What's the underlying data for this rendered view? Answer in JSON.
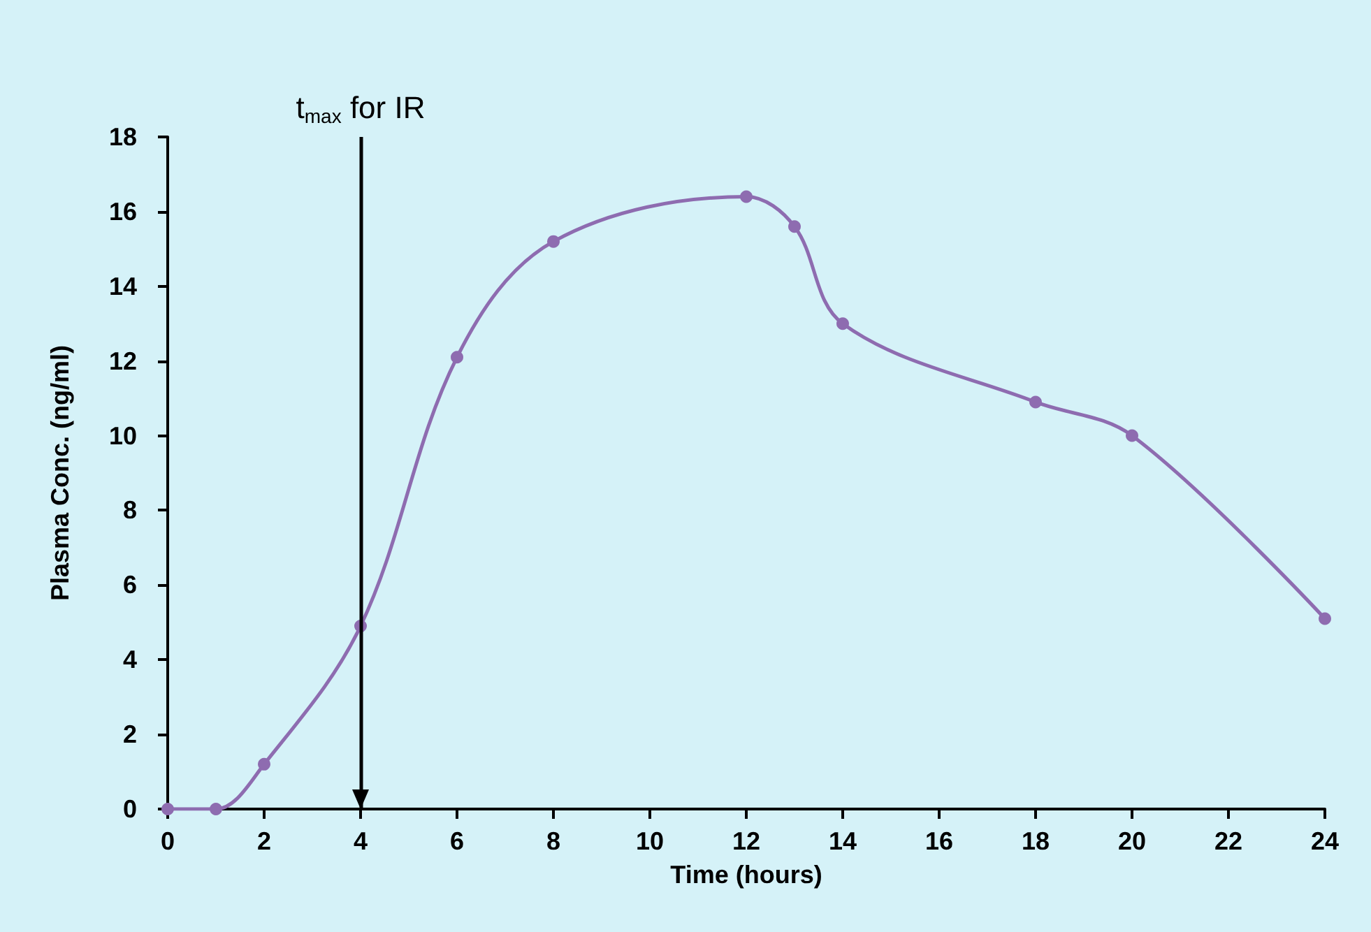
{
  "chart_data": {
    "type": "line",
    "xlabel": "Time (hours)",
    "ylabel": "Plasma Conc. (ng/ml)",
    "x": [
      0,
      1,
      2,
      4,
      6,
      8,
      12,
      13,
      14,
      18,
      20,
      24
    ],
    "series": [
      {
        "color": "#8e6cb0",
        "values": [
          0,
          0,
          1.2,
          4.9,
          12.1,
          15.2,
          16.4,
          15.6,
          13.0,
          10.9,
          10.0,
          5.1
        ]
      }
    ],
    "xlim": [
      0,
      24
    ],
    "xticks": [
      0,
      2,
      4,
      6,
      8,
      10,
      12,
      14,
      16,
      18,
      20,
      22,
      24
    ],
    "ylim": [
      0,
      18
    ],
    "yticks": [
      0,
      2,
      4,
      6,
      8,
      10,
      12,
      14,
      16,
      18
    ],
    "ref_lines": [
      {
        "axis": "x",
        "value": 4,
        "label": "t$_{max}$ for IR",
        "color": "#000000",
        "line_style": "solid"
      }
    ],
    "grid": false,
    "marker": "circle",
    "line_style": "solid"
  }
}
